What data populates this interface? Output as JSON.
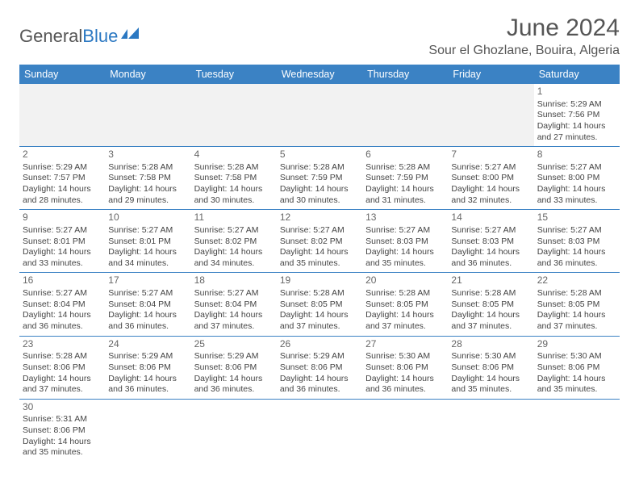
{
  "logo": {
    "text1": "General",
    "text2": "Blue"
  },
  "title": "June 2024",
  "location": "Sour el Ghozlane, Bouira, Algeria",
  "colors": {
    "header_bg": "#3b82c4",
    "header_text": "#ffffff",
    "border": "#3b82c4",
    "text": "#444444",
    "title_text": "#555555",
    "logo_blue": "#2b78c2",
    "empty_bg": "#f2f2f2"
  },
  "typography": {
    "title_fontsize": 30,
    "location_fontsize": 16,
    "dayheader_fontsize": 12.5,
    "cell_fontsize": 10.5,
    "daynum_fontsize": 12
  },
  "day_headers": [
    "Sunday",
    "Monday",
    "Tuesday",
    "Wednesday",
    "Thursday",
    "Friday",
    "Saturday"
  ],
  "weeks": [
    [
      null,
      null,
      null,
      null,
      null,
      null,
      {
        "n": "1",
        "sr": "Sunrise: 5:29 AM",
        "ss": "Sunset: 7:56 PM",
        "d1": "Daylight: 14 hours",
        "d2": "and 27 minutes."
      }
    ],
    [
      {
        "n": "2",
        "sr": "Sunrise: 5:29 AM",
        "ss": "Sunset: 7:57 PM",
        "d1": "Daylight: 14 hours",
        "d2": "and 28 minutes."
      },
      {
        "n": "3",
        "sr": "Sunrise: 5:28 AM",
        "ss": "Sunset: 7:58 PM",
        "d1": "Daylight: 14 hours",
        "d2": "and 29 minutes."
      },
      {
        "n": "4",
        "sr": "Sunrise: 5:28 AM",
        "ss": "Sunset: 7:58 PM",
        "d1": "Daylight: 14 hours",
        "d2": "and 30 minutes."
      },
      {
        "n": "5",
        "sr": "Sunrise: 5:28 AM",
        "ss": "Sunset: 7:59 PM",
        "d1": "Daylight: 14 hours",
        "d2": "and 30 minutes."
      },
      {
        "n": "6",
        "sr": "Sunrise: 5:28 AM",
        "ss": "Sunset: 7:59 PM",
        "d1": "Daylight: 14 hours",
        "d2": "and 31 minutes."
      },
      {
        "n": "7",
        "sr": "Sunrise: 5:27 AM",
        "ss": "Sunset: 8:00 PM",
        "d1": "Daylight: 14 hours",
        "d2": "and 32 minutes."
      },
      {
        "n": "8",
        "sr": "Sunrise: 5:27 AM",
        "ss": "Sunset: 8:00 PM",
        "d1": "Daylight: 14 hours",
        "d2": "and 33 minutes."
      }
    ],
    [
      {
        "n": "9",
        "sr": "Sunrise: 5:27 AM",
        "ss": "Sunset: 8:01 PM",
        "d1": "Daylight: 14 hours",
        "d2": "and 33 minutes."
      },
      {
        "n": "10",
        "sr": "Sunrise: 5:27 AM",
        "ss": "Sunset: 8:01 PM",
        "d1": "Daylight: 14 hours",
        "d2": "and 34 minutes."
      },
      {
        "n": "11",
        "sr": "Sunrise: 5:27 AM",
        "ss": "Sunset: 8:02 PM",
        "d1": "Daylight: 14 hours",
        "d2": "and 34 minutes."
      },
      {
        "n": "12",
        "sr": "Sunrise: 5:27 AM",
        "ss": "Sunset: 8:02 PM",
        "d1": "Daylight: 14 hours",
        "d2": "and 35 minutes."
      },
      {
        "n": "13",
        "sr": "Sunrise: 5:27 AM",
        "ss": "Sunset: 8:03 PM",
        "d1": "Daylight: 14 hours",
        "d2": "and 35 minutes."
      },
      {
        "n": "14",
        "sr": "Sunrise: 5:27 AM",
        "ss": "Sunset: 8:03 PM",
        "d1": "Daylight: 14 hours",
        "d2": "and 36 minutes."
      },
      {
        "n": "15",
        "sr": "Sunrise: 5:27 AM",
        "ss": "Sunset: 8:03 PM",
        "d1": "Daylight: 14 hours",
        "d2": "and 36 minutes."
      }
    ],
    [
      {
        "n": "16",
        "sr": "Sunrise: 5:27 AM",
        "ss": "Sunset: 8:04 PM",
        "d1": "Daylight: 14 hours",
        "d2": "and 36 minutes."
      },
      {
        "n": "17",
        "sr": "Sunrise: 5:27 AM",
        "ss": "Sunset: 8:04 PM",
        "d1": "Daylight: 14 hours",
        "d2": "and 36 minutes."
      },
      {
        "n": "18",
        "sr": "Sunrise: 5:27 AM",
        "ss": "Sunset: 8:04 PM",
        "d1": "Daylight: 14 hours",
        "d2": "and 37 minutes."
      },
      {
        "n": "19",
        "sr": "Sunrise: 5:28 AM",
        "ss": "Sunset: 8:05 PM",
        "d1": "Daylight: 14 hours",
        "d2": "and 37 minutes."
      },
      {
        "n": "20",
        "sr": "Sunrise: 5:28 AM",
        "ss": "Sunset: 8:05 PM",
        "d1": "Daylight: 14 hours",
        "d2": "and 37 minutes."
      },
      {
        "n": "21",
        "sr": "Sunrise: 5:28 AM",
        "ss": "Sunset: 8:05 PM",
        "d1": "Daylight: 14 hours",
        "d2": "and 37 minutes."
      },
      {
        "n": "22",
        "sr": "Sunrise: 5:28 AM",
        "ss": "Sunset: 8:05 PM",
        "d1": "Daylight: 14 hours",
        "d2": "and 37 minutes."
      }
    ],
    [
      {
        "n": "23",
        "sr": "Sunrise: 5:28 AM",
        "ss": "Sunset: 8:06 PM",
        "d1": "Daylight: 14 hours",
        "d2": "and 37 minutes."
      },
      {
        "n": "24",
        "sr": "Sunrise: 5:29 AM",
        "ss": "Sunset: 8:06 PM",
        "d1": "Daylight: 14 hours",
        "d2": "and 36 minutes."
      },
      {
        "n": "25",
        "sr": "Sunrise: 5:29 AM",
        "ss": "Sunset: 8:06 PM",
        "d1": "Daylight: 14 hours",
        "d2": "and 36 minutes."
      },
      {
        "n": "26",
        "sr": "Sunrise: 5:29 AM",
        "ss": "Sunset: 8:06 PM",
        "d1": "Daylight: 14 hours",
        "d2": "and 36 minutes."
      },
      {
        "n": "27",
        "sr": "Sunrise: 5:30 AM",
        "ss": "Sunset: 8:06 PM",
        "d1": "Daylight: 14 hours",
        "d2": "and 36 minutes."
      },
      {
        "n": "28",
        "sr": "Sunrise: 5:30 AM",
        "ss": "Sunset: 8:06 PM",
        "d1": "Daylight: 14 hours",
        "d2": "and 35 minutes."
      },
      {
        "n": "29",
        "sr": "Sunrise: 5:30 AM",
        "ss": "Sunset: 8:06 PM",
        "d1": "Daylight: 14 hours",
        "d2": "and 35 minutes."
      }
    ],
    [
      {
        "n": "30",
        "sr": "Sunrise: 5:31 AM",
        "ss": "Sunset: 8:06 PM",
        "d1": "Daylight: 14 hours",
        "d2": "and 35 minutes."
      },
      null,
      null,
      null,
      null,
      null,
      null
    ]
  ]
}
